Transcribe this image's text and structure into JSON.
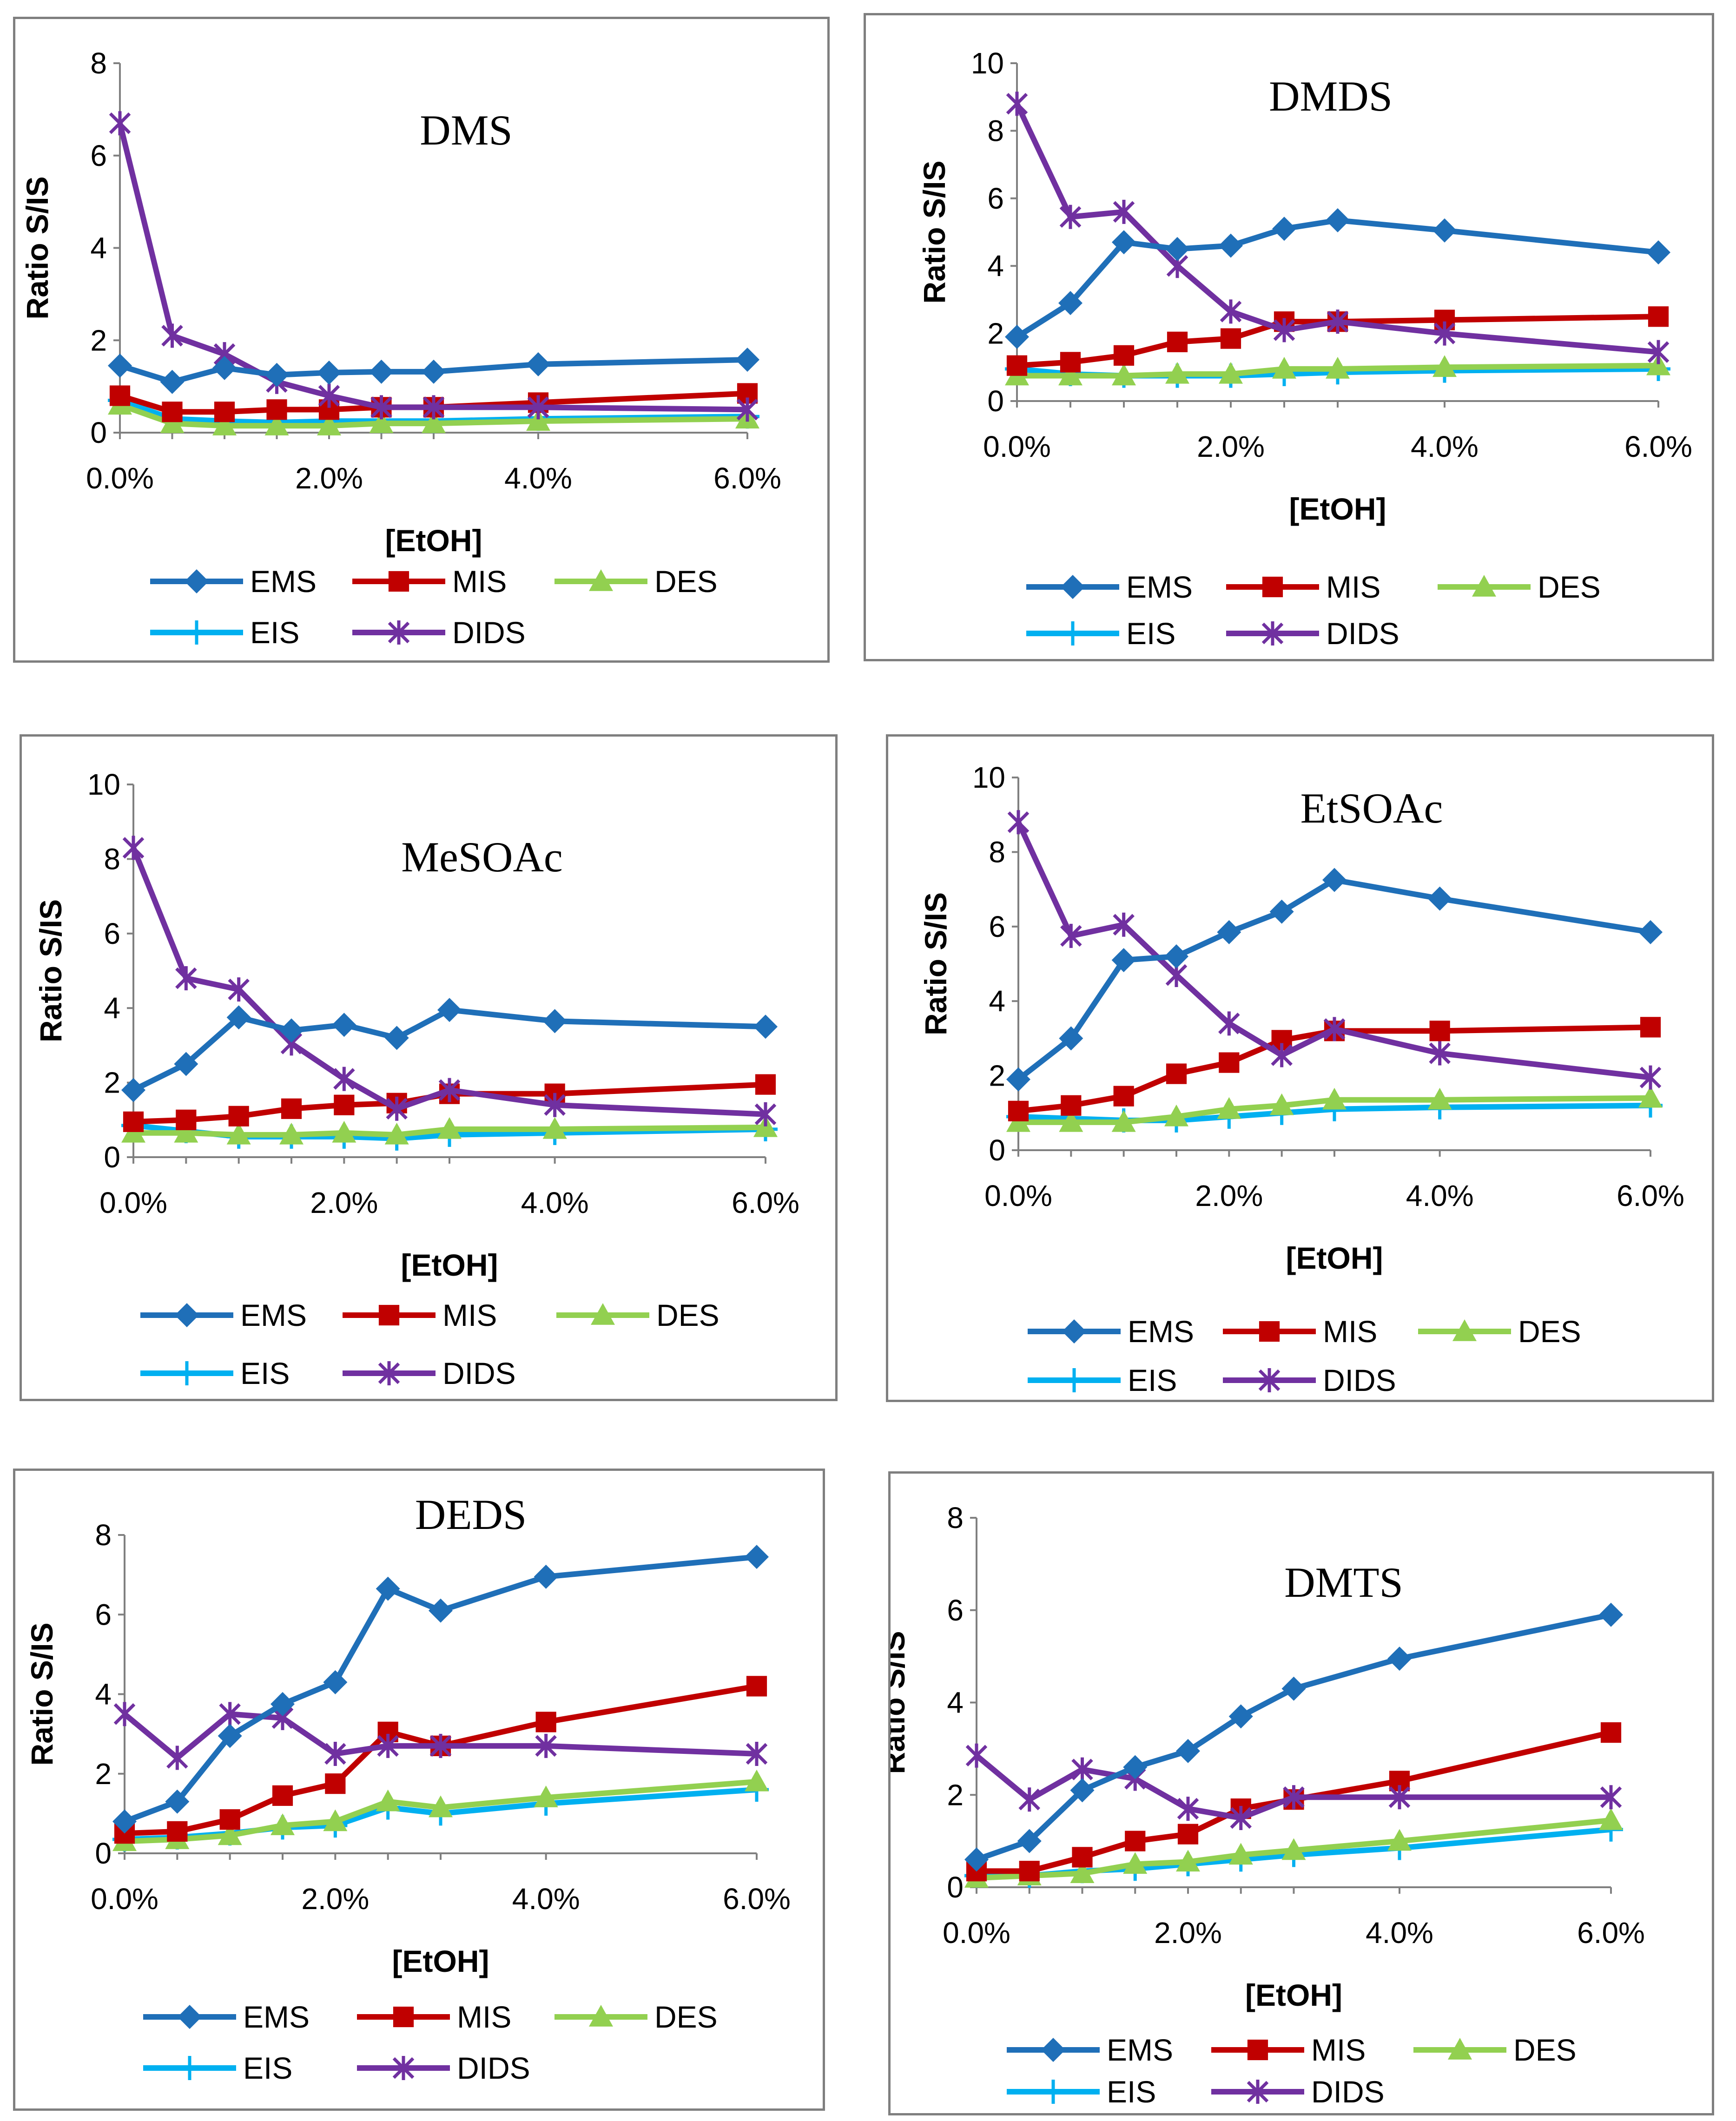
{
  "chart_data": [
    {
      "type": "line",
      "title": "DMS",
      "xlabel": "[EtOH]",
      "ylabel": "Ratio S/IS",
      "x": [
        0,
        0.5,
        1,
        1.5,
        2,
        2.5,
        3,
        4,
        6
      ],
      "xlim": [
        0,
        6
      ],
      "xticks": [
        0,
        2,
        4,
        6
      ],
      "xtick_labels": [
        "0.0%",
        "2.0%",
        "4.0%",
        "6.0%"
      ],
      "ylim": [
        0,
        8
      ],
      "yticks": [
        0,
        2,
        4,
        6,
        8
      ],
      "ytick_labels": [
        "0",
        "2",
        "4",
        "6",
        "8"
      ],
      "series": [
        {
          "name": "EMS",
          "color": "#1f6fb8",
          "marker": "diamond",
          "values": [
            1.45,
            1.1,
            1.4,
            1.25,
            1.3,
            1.32,
            1.32,
            1.48,
            1.58
          ]
        },
        {
          "name": "MIS",
          "color": "#c00000",
          "marker": "square",
          "values": [
            0.8,
            0.45,
            0.45,
            0.5,
            0.5,
            0.55,
            0.55,
            0.65,
            0.85
          ]
        },
        {
          "name": "DES",
          "color": "#92d050",
          "marker": "triangle",
          "values": [
            0.6,
            0.2,
            0.15,
            0.15,
            0.15,
            0.2,
            0.2,
            0.25,
            0.3
          ]
        },
        {
          "name": "EIS",
          "color": "#00b0f0",
          "marker": "plus",
          "values": [
            0.7,
            0.3,
            0.25,
            0.22,
            0.25,
            0.25,
            0.25,
            0.3,
            0.35
          ]
        },
        {
          "name": "DIDS",
          "color": "#7030a0",
          "marker": "star",
          "values": [
            6.7,
            2.1,
            1.7,
            1.1,
            0.8,
            0.55,
            0.55,
            0.55,
            0.5
          ]
        }
      ]
    },
    {
      "type": "line",
      "title": "DMDS",
      "xlabel": "[EtOH]",
      "ylabel": "Ratio S/IS",
      "x": [
        0,
        0.5,
        1,
        1.5,
        2,
        2.5,
        3,
        4,
        6
      ],
      "xlim": [
        0,
        6
      ],
      "xticks": [
        0,
        2,
        4,
        6
      ],
      "xtick_labels": [
        "0.0%",
        "2.0%",
        "4.0%",
        "6.0%"
      ],
      "ylim": [
        0,
        10
      ],
      "yticks": [
        0,
        2,
        4,
        6,
        8,
        10
      ],
      "ytick_labels": [
        "0",
        "2",
        "4",
        "6",
        "8",
        "10"
      ],
      "series": [
        {
          "name": "EMS",
          "color": "#1f6fb8",
          "marker": "diamond",
          "values": [
            1.9,
            2.9,
            4.7,
            4.5,
            4.6,
            5.1,
            5.35,
            5.05,
            4.4
          ]
        },
        {
          "name": "MIS",
          "color": "#c00000",
          "marker": "square",
          "values": [
            1.05,
            1.15,
            1.35,
            1.75,
            1.85,
            2.35,
            2.35,
            2.4,
            2.5
          ]
        },
        {
          "name": "DES",
          "color": "#92d050",
          "marker": "triangle",
          "values": [
            0.75,
            0.75,
            0.75,
            0.8,
            0.8,
            0.95,
            0.95,
            1.0,
            1.05
          ]
        },
        {
          "name": "EIS",
          "color": "#00b0f0",
          "marker": "plus",
          "values": [
            0.95,
            0.8,
            0.75,
            0.75,
            0.75,
            0.8,
            0.85,
            0.9,
            0.95
          ]
        },
        {
          "name": "DIDS",
          "color": "#7030a0",
          "marker": "star",
          "values": [
            8.8,
            5.45,
            5.6,
            4.0,
            2.65,
            2.1,
            2.35,
            2.0,
            1.45
          ]
        }
      ]
    },
    {
      "type": "line",
      "title": "MeSOAc",
      "xlabel": "[EtOH]",
      "ylabel": "Ratio S/IS",
      "x": [
        0,
        0.5,
        1,
        1.5,
        2,
        2.5,
        3,
        4,
        6
      ],
      "xlim": [
        0,
        6
      ],
      "xticks": [
        0,
        2,
        4,
        6
      ],
      "xtick_labels": [
        "0.0%",
        "2.0%",
        "4.0%",
        "6.0%"
      ],
      "ylim": [
        0,
        10
      ],
      "yticks": [
        0,
        2,
        4,
        6,
        8,
        10
      ],
      "ytick_labels": [
        "0",
        "2",
        "4",
        "6",
        "8",
        "10"
      ],
      "series": [
        {
          "name": "EMS",
          "color": "#1f6fb8",
          "marker": "diamond",
          "values": [
            1.8,
            2.5,
            3.75,
            3.4,
            3.55,
            3.2,
            3.95,
            3.65,
            3.5
          ]
        },
        {
          "name": "MIS",
          "color": "#c00000",
          "marker": "square",
          "values": [
            0.95,
            1.0,
            1.1,
            1.3,
            1.4,
            1.45,
            1.7,
            1.7,
            1.95
          ]
        },
        {
          "name": "DES",
          "color": "#92d050",
          "marker": "triangle",
          "values": [
            0.65,
            0.65,
            0.6,
            0.6,
            0.65,
            0.6,
            0.75,
            0.75,
            0.8
          ]
        },
        {
          "name": "EIS",
          "color": "#00b0f0",
          "marker": "plus",
          "values": [
            0.85,
            0.7,
            0.55,
            0.55,
            0.55,
            0.5,
            0.6,
            0.65,
            0.75
          ]
        },
        {
          "name": "DIDS",
          "color": "#7030a0",
          "marker": "star",
          "values": [
            8.3,
            4.8,
            4.5,
            3.05,
            2.1,
            1.3,
            1.8,
            1.4,
            1.15
          ]
        }
      ]
    },
    {
      "type": "line",
      "title": "EtSOAc",
      "xlabel": "[EtOH]",
      "ylabel": "Ratio S/IS",
      "x": [
        0,
        0.5,
        1,
        1.5,
        2,
        2.5,
        3,
        4,
        6
      ],
      "xlim": [
        0,
        6
      ],
      "xticks": [
        0,
        2,
        4,
        6
      ],
      "xtick_labels": [
        "0.0%",
        "2.0%",
        "4.0%",
        "6.0%"
      ],
      "ylim": [
        0,
        10
      ],
      "yticks": [
        0,
        2,
        4,
        6,
        8,
        10
      ],
      "ytick_labels": [
        "0",
        "2",
        "4",
        "6",
        "8",
        "10"
      ],
      "series": [
        {
          "name": "EMS",
          "color": "#1f6fb8",
          "marker": "diamond",
          "values": [
            1.9,
            3.0,
            5.1,
            5.2,
            5.85,
            6.4,
            7.25,
            6.75,
            5.85
          ]
        },
        {
          "name": "MIS",
          "color": "#c00000",
          "marker": "square",
          "values": [
            1.05,
            1.2,
            1.45,
            2.05,
            2.35,
            2.95,
            3.2,
            3.2,
            3.3
          ]
        },
        {
          "name": "DES",
          "color": "#92d050",
          "marker": "triangle",
          "values": [
            0.75,
            0.75,
            0.75,
            0.9,
            1.1,
            1.2,
            1.35,
            1.35,
            1.4
          ]
        },
        {
          "name": "EIS",
          "color": "#00b0f0",
          "marker": "plus",
          "values": [
            0.9,
            0.85,
            0.8,
            0.8,
            0.9,
            1.0,
            1.1,
            1.15,
            1.2
          ]
        },
        {
          "name": "DIDS",
          "color": "#7030a0",
          "marker": "star",
          "values": [
            8.8,
            5.75,
            6.05,
            4.7,
            3.4,
            2.55,
            3.25,
            2.6,
            1.95
          ]
        }
      ]
    },
    {
      "type": "line",
      "title": "DEDS",
      "xlabel": "[EtOH]",
      "ylabel": "Ratio S/IS",
      "x": [
        0,
        0.5,
        1,
        1.5,
        2,
        2.5,
        3,
        4,
        6
      ],
      "xlim": [
        0,
        6
      ],
      "xticks": [
        0,
        2,
        4,
        6
      ],
      "xtick_labels": [
        "0.0%",
        "2.0%",
        "4.0%",
        "6.0%"
      ],
      "ylim": [
        0,
        8
      ],
      "yticks": [
        0,
        2,
        4,
        6,
        8
      ],
      "ytick_labels": [
        "0",
        "2",
        "4",
        "6",
        "8"
      ],
      "series": [
        {
          "name": "EMS",
          "color": "#1f6fb8",
          "marker": "diamond",
          "values": [
            0.8,
            1.3,
            2.95,
            3.75,
            4.3,
            6.65,
            6.1,
            6.95,
            7.45
          ]
        },
        {
          "name": "MIS",
          "color": "#c00000",
          "marker": "square",
          "values": [
            0.5,
            0.55,
            0.85,
            1.45,
            1.75,
            3.05,
            2.7,
            3.3,
            4.2
          ]
        },
        {
          "name": "DES",
          "color": "#92d050",
          "marker": "triangle",
          "values": [
            0.3,
            0.35,
            0.45,
            0.7,
            0.8,
            1.3,
            1.15,
            1.4,
            1.8
          ]
        },
        {
          "name": "EIS",
          "color": "#00b0f0",
          "marker": "plus",
          "values": [
            0.35,
            0.4,
            0.5,
            0.65,
            0.7,
            1.15,
            1.0,
            1.25,
            1.6
          ]
        },
        {
          "name": "DIDS",
          "color": "#7030a0",
          "marker": "star",
          "values": [
            3.5,
            2.4,
            3.5,
            3.4,
            2.5,
            2.7,
            2.7,
            2.7,
            2.5
          ]
        }
      ]
    },
    {
      "type": "line",
      "title": "DMTS",
      "xlabel": "[EtOH]",
      "ylabel": "Ratio S/IS",
      "x": [
        0,
        0.5,
        1,
        1.5,
        2,
        2.5,
        3,
        4,
        6
      ],
      "xlim": [
        0,
        6
      ],
      "xticks": [
        0,
        2,
        4,
        6
      ],
      "xtick_labels": [
        "0.0%",
        "2.0%",
        "4.0%",
        "6.0%"
      ],
      "ylim": [
        0,
        8
      ],
      "yticks": [
        0,
        2,
        4,
        6,
        8
      ],
      "ytick_labels": [
        "0",
        "2",
        "4",
        "6",
        "8"
      ],
      "series": [
        {
          "name": "EMS",
          "color": "#1f6fb8",
          "marker": "diamond",
          "values": [
            0.6,
            1.0,
            2.1,
            2.6,
            2.95,
            3.7,
            4.3,
            4.95,
            5.9
          ]
        },
        {
          "name": "MIS",
          "color": "#c00000",
          "marker": "square",
          "values": [
            0.35,
            0.35,
            0.65,
            1.0,
            1.15,
            1.7,
            1.9,
            2.3,
            3.35
          ]
        },
        {
          "name": "DES",
          "color": "#92d050",
          "marker": "triangle",
          "values": [
            0.2,
            0.25,
            0.3,
            0.5,
            0.55,
            0.7,
            0.8,
            1.0,
            1.45
          ]
        },
        {
          "name": "EIS",
          "color": "#00b0f0",
          "marker": "plus",
          "values": [
            0.25,
            0.25,
            0.35,
            0.4,
            0.5,
            0.6,
            0.7,
            0.85,
            1.25
          ]
        },
        {
          "name": "DIDS",
          "color": "#7030a0",
          "marker": "star",
          "values": [
            2.85,
            1.9,
            2.55,
            2.35,
            1.7,
            1.5,
            1.95,
            1.95,
            1.95
          ]
        }
      ]
    }
  ]
}
